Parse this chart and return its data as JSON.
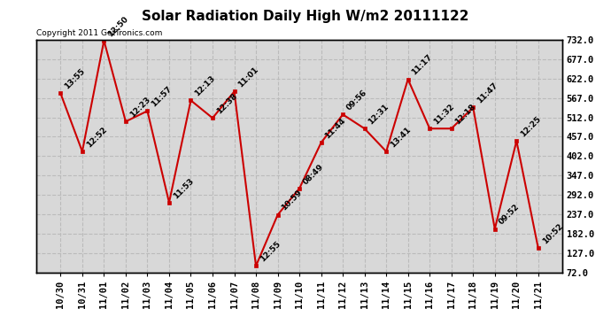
{
  "title": "Solar Radiation Daily High W/m2 20111122",
  "copyright": "Copyright 2011 GetTronics.com",
  "x_labels": [
    "10/30",
    "10/31",
    "11/01",
    "11/02",
    "11/03",
    "11/04",
    "11/05",
    "11/06",
    "11/07",
    "11/08",
    "11/09",
    "11/10",
    "11/11",
    "11/12",
    "11/13",
    "11/14",
    "11/15",
    "11/16",
    "11/17",
    "11/18",
    "11/19",
    "11/20",
    "11/21"
  ],
  "y_values": [
    580,
    415,
    730,
    500,
    530,
    270,
    560,
    510,
    585,
    90,
    235,
    310,
    440,
    520,
    480,
    415,
    620,
    480,
    480,
    540,
    195,
    445,
    140
  ],
  "annotations": [
    "13:55",
    "12:52",
    "12:50",
    "12:23",
    "11:57",
    "11:53",
    "12:13",
    "12:38",
    "11:01",
    "12:55",
    "10:59",
    "08:49",
    "11:44",
    "09:56",
    "12:31",
    "13:41",
    "11:17",
    "11:32",
    "12:18",
    "11:47",
    "09:52",
    "12:25",
    "10:52"
  ],
  "line_color": "#cc0000",
  "marker_color": "#cc0000",
  "bg_color": "#ffffff",
  "plot_bg_color": "#d8d8d8",
  "grid_color": "#bbbbbb",
  "ylim_min": 72.0,
  "ylim_max": 732.0,
  "yticks": [
    72.0,
    127.0,
    182.0,
    237.0,
    292.0,
    347.0,
    402.0,
    457.0,
    512.0,
    567.0,
    622.0,
    677.0,
    732.0
  ],
  "title_fontsize": 11,
  "annotation_fontsize": 6.5,
  "copyright_fontsize": 6.5,
  "tick_fontsize": 7.5
}
